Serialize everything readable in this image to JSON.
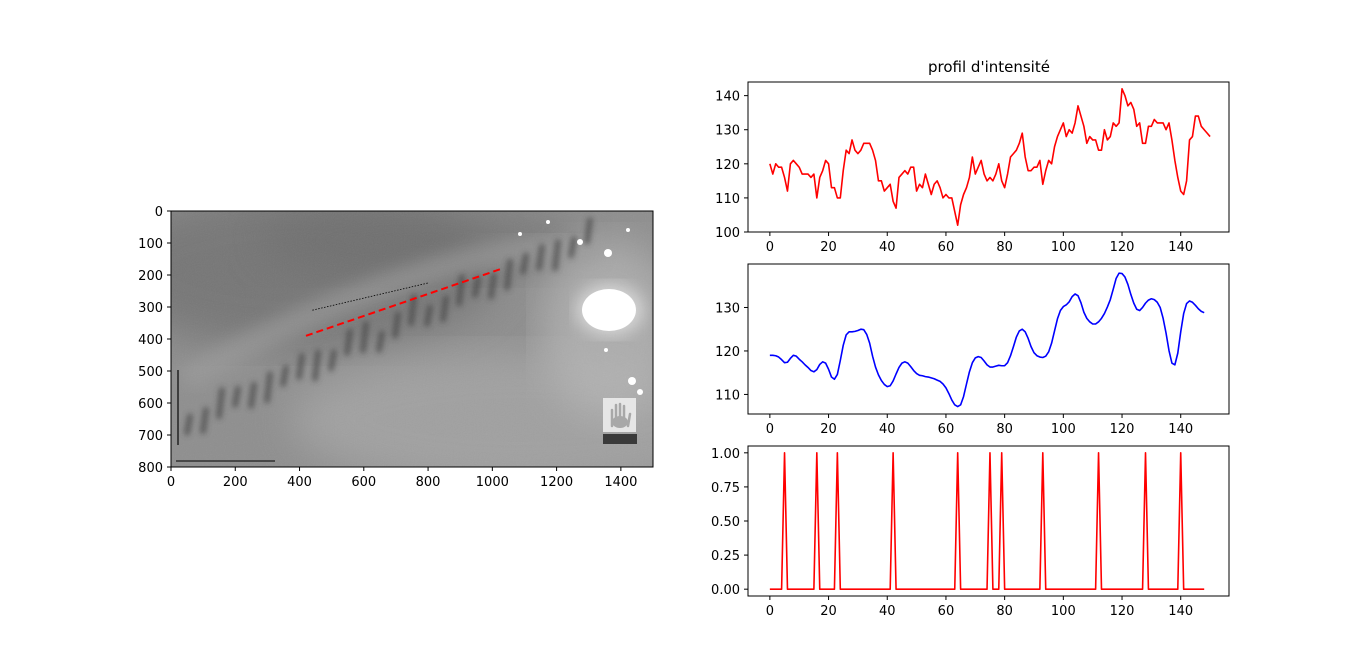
{
  "chart_data": [
    {
      "type": "image",
      "title": "",
      "xlim": [
        0,
        1500
      ],
      "ylim": [
        800,
        0
      ],
      "xticks": [
        0,
        200,
        400,
        600,
        800,
        1000,
        1200,
        1400
      ],
      "yticks": [
        0,
        100,
        200,
        300,
        400,
        500,
        600,
        700,
        800
      ],
      "annotations": [
        {
          "name": "profile-line",
          "style": "red dashed",
          "color": "#ff0000",
          "x": [
            420,
            1030
          ],
          "y": [
            390,
            180
          ]
        },
        {
          "name": "reference-line",
          "style": "black dotted",
          "color": "#000000",
          "x": [
            440,
            800
          ],
          "y": [
            310,
            225
          ]
        }
      ]
    },
    {
      "type": "line",
      "title": "profil d'intensité",
      "xlim": [
        -7.45,
        156.45
      ],
      "ylim": [
        100,
        144
      ],
      "xticks": [
        0,
        20,
        40,
        60,
        80,
        100,
        120,
        140
      ],
      "yticks": [
        100,
        110,
        120,
        130,
        140
      ],
      "series": [
        {
          "color": "#ff0000",
          "x_start": 0,
          "x_step": 1,
          "values": [
            120,
            117,
            120,
            119,
            119,
            116,
            112,
            120,
            121,
            120,
            119,
            117,
            117,
            117,
            116,
            117,
            110,
            116,
            118,
            121,
            120,
            113,
            113,
            110,
            110,
            118,
            124,
            123,
            127,
            124,
            123,
            124,
            126,
            126,
            126,
            124,
            121,
            115,
            115,
            112,
            113,
            114,
            109,
            107,
            116,
            117,
            118,
            117,
            119,
            119,
            112,
            114,
            113,
            117,
            114,
            111,
            114,
            115,
            113,
            110,
            111,
            110,
            110,
            106,
            102,
            108,
            111,
            113,
            116,
            122,
            117,
            119,
            121,
            117,
            115,
            116,
            115,
            117,
            120,
            115,
            113,
            117,
            122,
            123,
            124,
            126,
            129,
            122,
            118,
            118,
            119,
            119,
            121,
            114,
            118,
            121,
            120,
            125,
            128,
            130,
            132,
            128,
            130,
            129,
            132,
            137,
            134,
            131,
            126,
            128,
            127,
            127,
            124,
            124,
            130,
            127,
            128,
            132,
            131,
            132,
            142,
            140,
            137,
            138,
            136,
            131,
            132,
            126,
            126,
            131,
            131,
            133,
            132,
            132,
            132,
            130,
            132,
            127,
            121,
            116,
            112,
            111,
            115,
            127,
            128,
            134,
            134,
            131,
            130,
            129,
            128
          ]
        }
      ]
    },
    {
      "type": "line",
      "xlim": [
        -7.45,
        156.45
      ],
      "ylim": [
        105.5,
        140
      ],
      "xticks": [
        0,
        20,
        40,
        60,
        80,
        100,
        120,
        140
      ],
      "yticks": [
        110,
        120,
        130
      ],
      "series": [
        {
          "color": "#0000ff",
          "x_start": 0,
          "x_step": 1,
          "values": [
            119,
            119,
            118.9,
            118.6,
            118,
            117.3,
            117.4,
            118.3,
            119,
            118.8,
            118.1,
            117.5,
            116.8,
            116.2,
            115.5,
            115.2,
            115.7,
            116.9,
            117.5,
            117.2,
            115.8,
            114,
            113.5,
            114.6,
            117.8,
            121.3,
            123.7,
            124.4,
            124.4,
            124.5,
            124.7,
            125,
            124.9,
            123.8,
            121.8,
            118.8,
            116.3,
            114.5,
            113.2,
            112.3,
            111.8,
            112,
            113.1,
            114.7,
            116.2,
            117.2,
            117.5,
            117.2,
            116.4,
            115.5,
            114.8,
            114.4,
            114.3,
            114.1,
            114,
            113.8,
            113.6,
            113.3,
            113,
            112.4,
            111.5,
            110.2,
            108.7,
            107.6,
            107.2,
            107.6,
            109.5,
            112.4,
            115.2,
            117.3,
            118.4,
            118.7,
            118.5,
            117.7,
            116.8,
            116.3,
            116.3,
            116.5,
            116.7,
            116.6,
            116.6,
            117.3,
            118.9,
            121,
            123.2,
            124.6,
            125,
            124.4,
            122.9,
            121,
            119.6,
            118.9,
            118.6,
            118.5,
            118.8,
            119.8,
            121.8,
            124.6,
            127.4,
            129.3,
            130.2,
            130.6,
            131.3,
            132.5,
            133.1,
            132.7,
            131.1,
            128.9,
            127.5,
            126.7,
            126.2,
            126.2,
            126.7,
            127.5,
            128.6,
            130.1,
            131.8,
            134.2,
            136.7,
            137.9,
            137.8,
            137,
            135.3,
            133,
            131,
            129.6,
            129.3,
            130,
            131,
            131.7,
            132,
            131.8,
            131.2,
            130,
            127.5,
            124.1,
            120.1,
            117.2,
            116.8,
            119.5,
            124.4,
            128.6,
            130.9,
            131.5,
            131.2,
            130.5,
            129.7,
            129.1,
            128.8
          ]
        }
      ]
    },
    {
      "type": "line",
      "xlim": [
        -7.45,
        156.45
      ],
      "ylim": [
        -0.05,
        1.05
      ],
      "xticks": [
        0,
        20,
        40,
        60,
        80,
        100,
        120,
        140
      ],
      "yticks": [
        0.0,
        0.25,
        0.5,
        0.75,
        1.0
      ],
      "ytick_labels": [
        "0.00",
        "0.25",
        "0.50",
        "0.75",
        "1.00"
      ],
      "series": [
        {
          "color": "#ff0000",
          "x_start": 0,
          "x_step": 1,
          "length": 149,
          "peaks": [
            5,
            16,
            23,
            42,
            64,
            75,
            79,
            93,
            112,
            128,
            140
          ]
        }
      ]
    }
  ]
}
